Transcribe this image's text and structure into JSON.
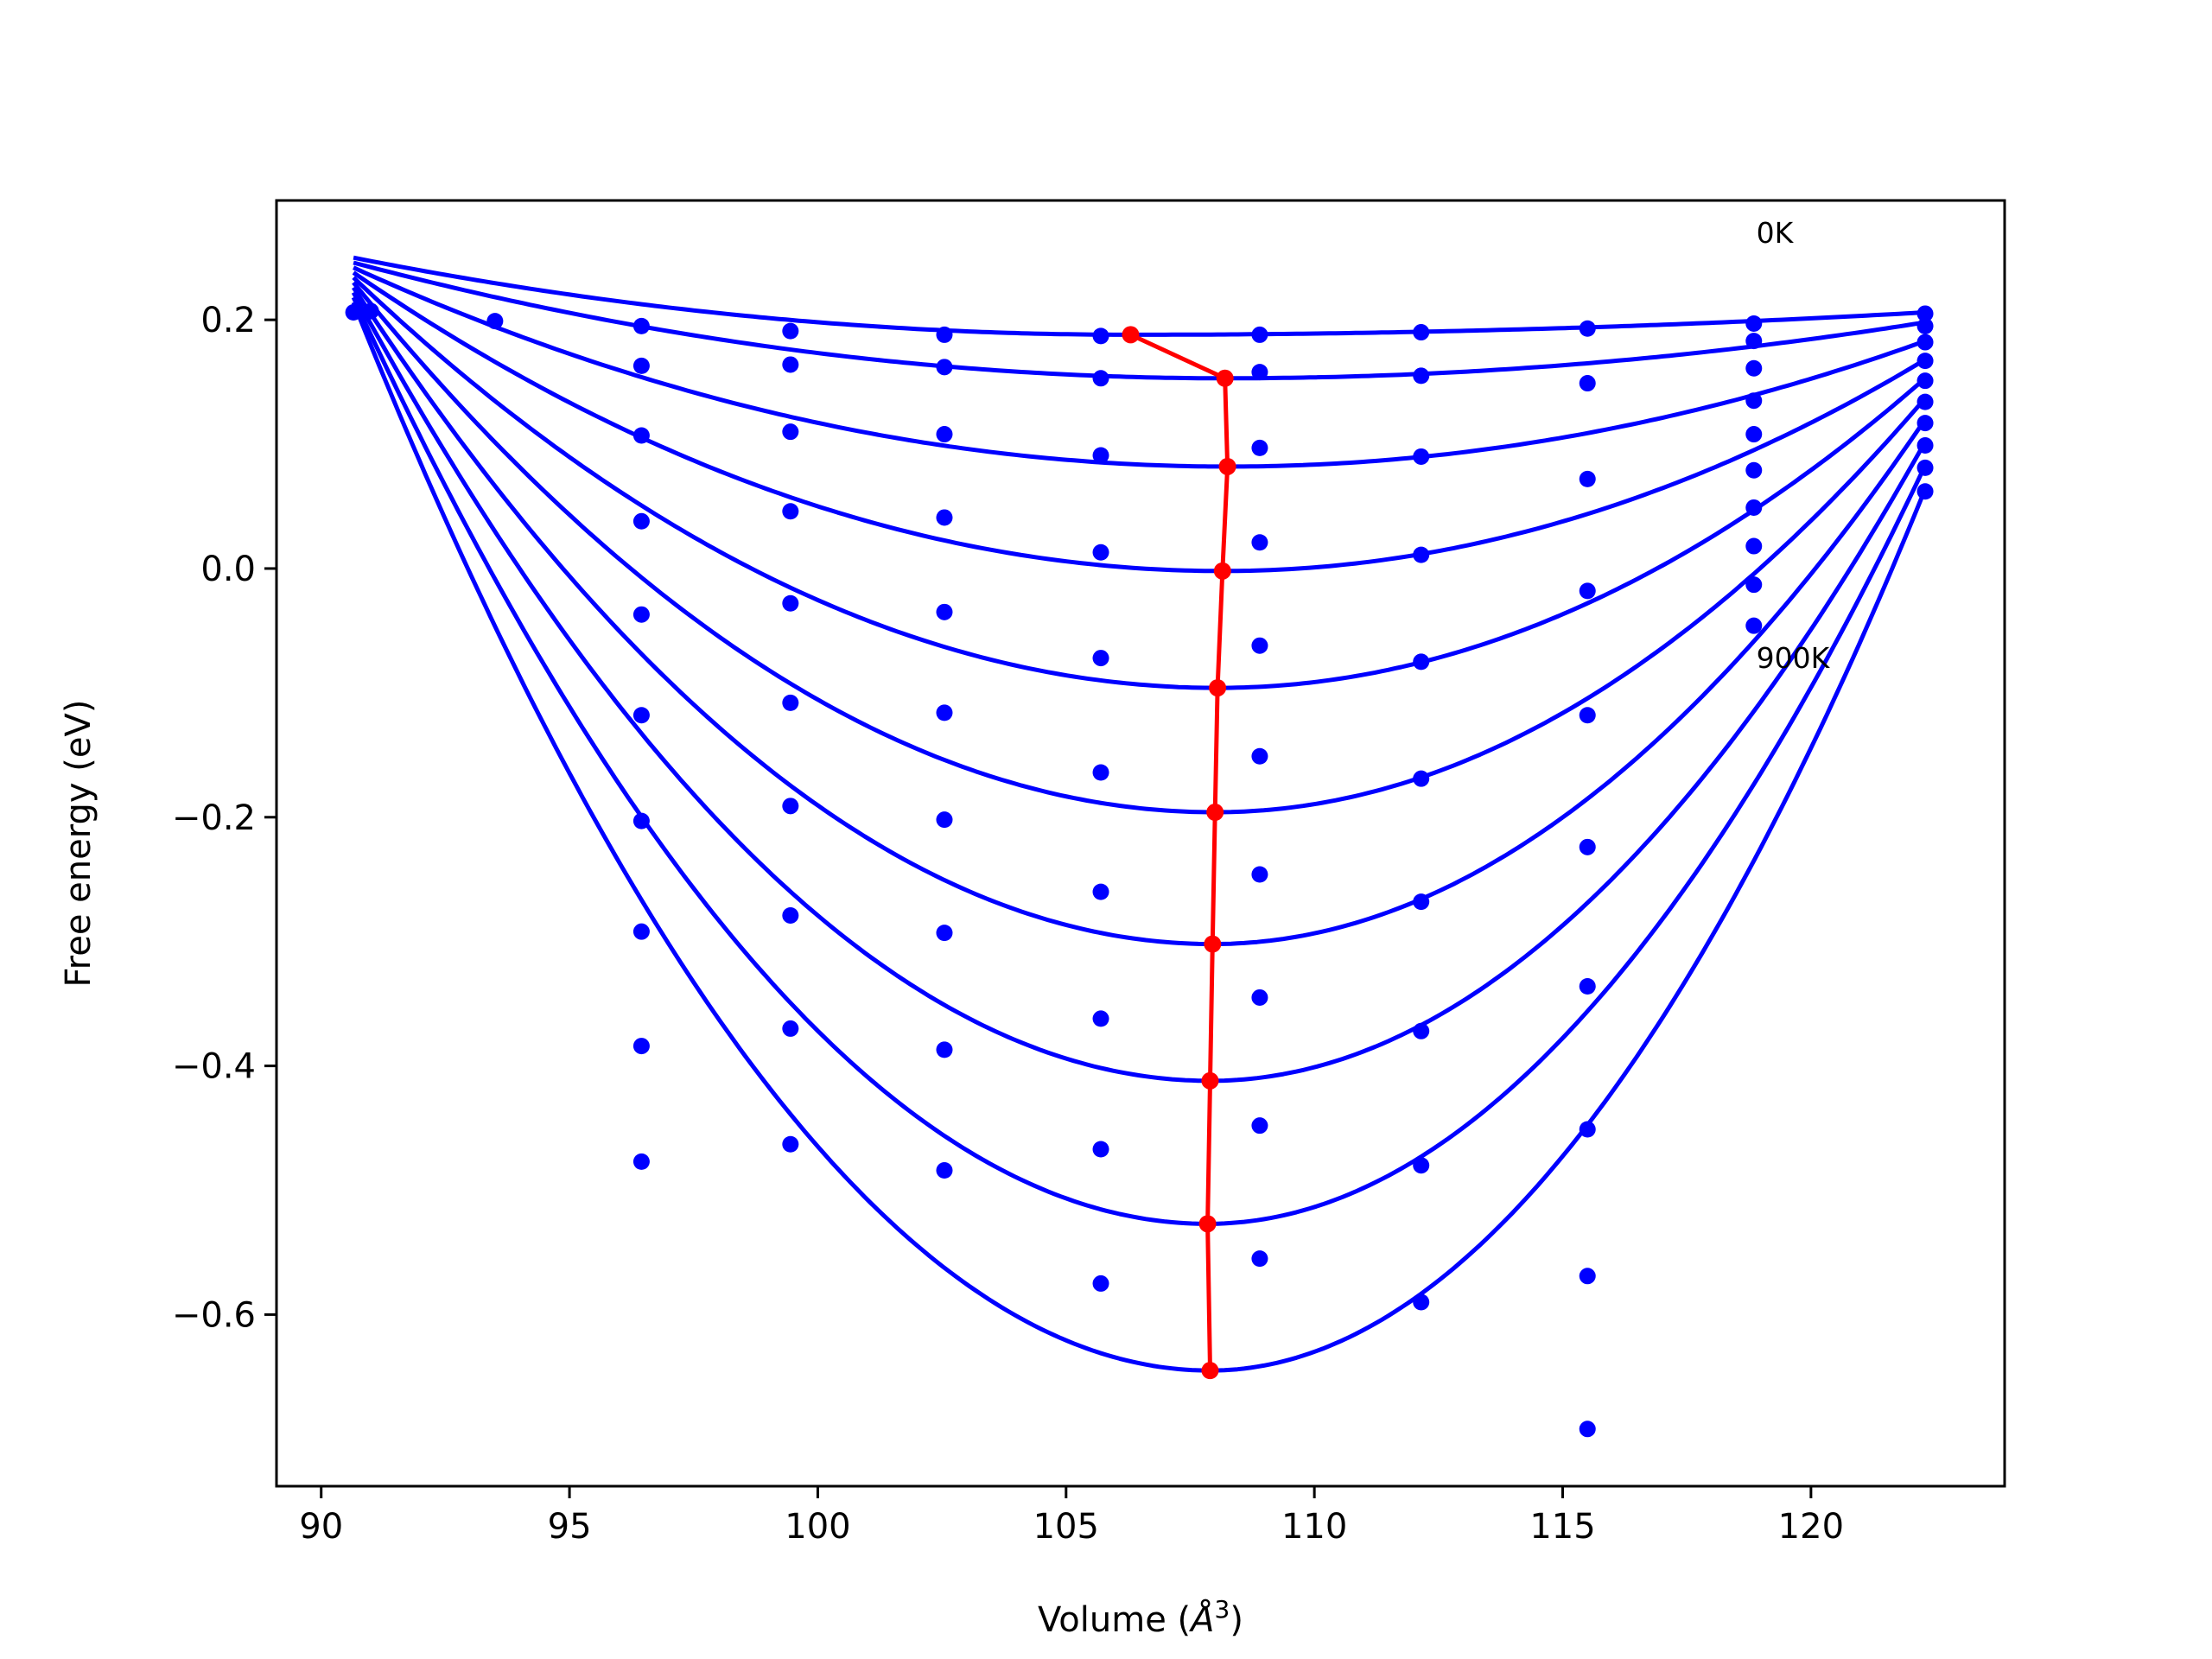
{
  "chart_data": {
    "type": "line",
    "title": "",
    "xlabel": "Volume (",
    "xlabel_symbol": "Å",
    "xlabel_exp": "3",
    "xlabel_close": ")",
    "ylabel": "Free energy (eV)",
    "xlim": [
      89.1,
      123.9
    ],
    "ylim": [
      -0.738,
      0.296
    ],
    "xticks": [
      90,
      95,
      100,
      105,
      110,
      115,
      120
    ],
    "yticks": [
      -0.6,
      -0.4,
      -0.2,
      0.0,
      0.2
    ],
    "ytick_labels": [
      "−0.6",
      "−0.4",
      "−0.2",
      "0.0",
      "0.2"
    ],
    "grid": false,
    "annotations": [
      {
        "text": "0K",
        "x": 118.9,
        "y": 0.262
      },
      {
        "text": "900K",
        "x": 118.9,
        "y": -0.08
      }
    ],
    "curve_color": "#0000ff",
    "minimum_line_color": "#ff0000",
    "curves": [
      {
        "vmin": 106.3,
        "fmin": 0.188,
        "left": [
          90.65,
          0.25
        ],
        "right": [
          122.3,
          0.206
        ]
      },
      {
        "vmin": 108.2,
        "fmin": 0.153,
        "left": [
          90.65,
          0.246
        ],
        "right": [
          122.3,
          0.198
        ]
      },
      {
        "vmin": 108.25,
        "fmin": 0.082,
        "left": [
          90.65,
          0.242
        ],
        "right": [
          122.3,
          0.183
        ]
      },
      {
        "vmin": 108.15,
        "fmin": -0.002,
        "left": [
          90.65,
          0.238
        ],
        "right": [
          122.3,
          0.168
        ]
      },
      {
        "vmin": 108.05,
        "fmin": -0.096,
        "left": [
          90.65,
          0.234
        ],
        "right": [
          122.3,
          0.153
        ]
      },
      {
        "vmin": 108.0,
        "fmin": -0.196,
        "left": [
          90.65,
          0.23
        ],
        "right": [
          122.3,
          0.137
        ]
      },
      {
        "vmin": 107.95,
        "fmin": -0.302,
        "left": [
          90.65,
          0.226
        ],
        "right": [
          122.3,
          0.12
        ]
      },
      {
        "vmin": 107.9,
        "fmin": -0.412,
        "left": [
          90.65,
          0.222
        ],
        "right": [
          122.3,
          0.102
        ]
      },
      {
        "vmin": 107.85,
        "fmin": -0.527,
        "left": [
          90.65,
          0.218
        ],
        "right": [
          122.3,
          0.083
        ]
      },
      {
        "vmin": 107.9,
        "fmin": -0.645,
        "left": [
          90.65,
          0.214
        ],
        "right": [
          122.3,
          0.064
        ]
      }
    ],
    "data_points": [
      [
        90.65,
        0.206
      ],
      [
        91.0,
        0.207
      ],
      [
        93.5,
        0.199
      ],
      [
        96.45,
        0.195
      ],
      [
        96.45,
        0.163
      ],
      [
        96.45,
        0.107
      ],
      [
        96.45,
        0.038
      ],
      [
        96.45,
        -0.037
      ],
      [
        96.45,
        -0.118
      ],
      [
        96.45,
        -0.203
      ],
      [
        96.45,
        -0.292
      ],
      [
        96.45,
        -0.384
      ],
      [
        96.45,
        -0.477
      ],
      [
        99.45,
        0.191
      ],
      [
        99.45,
        0.164
      ],
      [
        99.45,
        0.11
      ],
      [
        99.45,
        0.046
      ],
      [
        99.45,
        -0.028
      ],
      [
        99.45,
        -0.108
      ],
      [
        99.45,
        -0.191
      ],
      [
        99.45,
        -0.279
      ],
      [
        99.45,
        -0.37
      ],
      [
        99.45,
        -0.463
      ],
      [
        102.55,
        0.188
      ],
      [
        102.55,
        0.162
      ],
      [
        102.55,
        0.108
      ],
      [
        102.55,
        0.041
      ],
      [
        102.55,
        -0.035
      ],
      [
        102.55,
        -0.116
      ],
      [
        102.55,
        -0.202
      ],
      [
        102.55,
        -0.293
      ],
      [
        102.55,
        -0.387
      ],
      [
        102.55,
        -0.484
      ],
      [
        105.7,
        0.187
      ],
      [
        105.7,
        0.153
      ],
      [
        105.7,
        0.091
      ],
      [
        105.7,
        0.013
      ],
      [
        105.7,
        -0.072
      ],
      [
        105.7,
        -0.164
      ],
      [
        105.7,
        -0.26
      ],
      [
        105.7,
        -0.362
      ],
      [
        105.7,
        -0.467
      ],
      [
        105.7,
        -0.575
      ],
      [
        108.9,
        0.188
      ],
      [
        108.9,
        0.158
      ],
      [
        108.9,
        0.097
      ],
      [
        108.9,
        0.021
      ],
      [
        108.9,
        -0.062
      ],
      [
        108.9,
        -0.151
      ],
      [
        108.9,
        -0.246
      ],
      [
        108.9,
        -0.345
      ],
      [
        108.9,
        -0.448
      ],
      [
        108.9,
        -0.555
      ],
      [
        112.15,
        0.19
      ],
      [
        112.15,
        0.155
      ],
      [
        112.15,
        0.09
      ],
      [
        112.15,
        0.011
      ],
      [
        112.15,
        -0.075
      ],
      [
        112.15,
        -0.169
      ],
      [
        112.15,
        -0.268
      ],
      [
        112.15,
        -0.372
      ],
      [
        112.15,
        -0.48
      ],
      [
        112.15,
        -0.59
      ],
      [
        115.5,
        0.193
      ],
      [
        115.5,
        0.149
      ],
      [
        115.5,
        0.072
      ],
      [
        115.5,
        -0.018
      ],
      [
        115.5,
        -0.118
      ],
      [
        115.5,
        -0.224
      ],
      [
        115.5,
        -0.336
      ],
      [
        115.5,
        -0.451
      ],
      [
        115.5,
        -0.569
      ],
      [
        115.5,
        -0.692
      ],
      [
        118.85,
        0.197
      ],
      [
        118.85,
        0.183
      ],
      [
        118.85,
        0.161
      ],
      [
        118.85,
        0.135
      ],
      [
        118.85,
        0.108
      ],
      [
        118.85,
        0.079
      ],
      [
        118.85,
        0.049
      ],
      [
        118.85,
        0.018
      ],
      [
        118.85,
        -0.013
      ],
      [
        118.85,
        -0.046
      ],
      [
        122.3,
        0.205
      ],
      [
        122.3,
        0.195
      ],
      [
        122.3,
        0.182
      ],
      [
        122.3,
        0.167
      ],
      [
        122.3,
        0.151
      ],
      [
        122.3,
        0.134
      ],
      [
        122.3,
        0.117
      ],
      [
        122.3,
        0.099
      ],
      [
        122.3,
        0.081
      ],
      [
        122.3,
        0.062
      ]
    ]
  }
}
